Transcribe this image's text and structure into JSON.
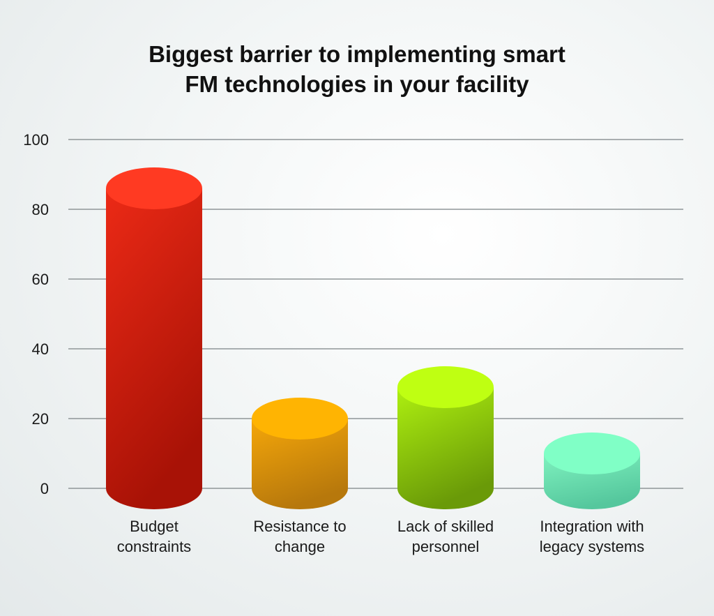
{
  "chart_data": {
    "type": "bar",
    "title_lines": [
      "Biggest barrier to implementing smart",
      "FM technologies in your facility"
    ],
    "xlabel": "",
    "ylabel": "",
    "ylim": [
      0,
      100
    ],
    "yticks": [
      0,
      20,
      40,
      60,
      80,
      100
    ],
    "grid": true,
    "categories": [
      [
        "Budget",
        "constraints"
      ],
      [
        "Resistance to",
        "change"
      ],
      [
        "Lack of skilled",
        "personnel"
      ],
      [
        "Integration with",
        "legacy systems"
      ]
    ],
    "values": [
      86,
      20,
      29,
      10
    ],
    "colors": [
      {
        "top": "#ff3a22",
        "light": "#ec2a16",
        "dark": "#a81206"
      },
      {
        "top": "#ffb402",
        "light": "#f5a70a",
        "dark": "#b7780c"
      },
      {
        "top": "#bfff12",
        "light": "#aef010",
        "dark": "#6a9a08"
      },
      {
        "top": "#80ffc6",
        "light": "#7ff2bf",
        "dark": "#55c79d"
      }
    ],
    "grid_color": "#8f9698"
  }
}
